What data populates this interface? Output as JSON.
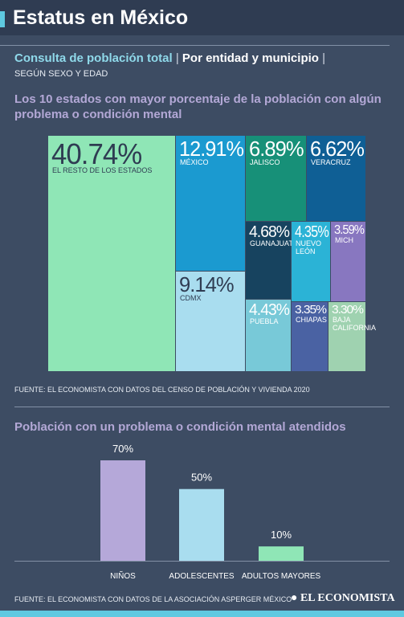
{
  "header": {
    "title": "Estatus en México"
  },
  "subtitle": {
    "part1": "Consulta de población total",
    "separator": "|",
    "part2": "Por entidad y municipio",
    "part3": "SEGÚN SEXO Y EDAD"
  },
  "footer": {
    "brand": "EL ECONOMISTA"
  },
  "colors": {
    "background": "#3d4c63",
    "accent": "#5ec9e0",
    "title_purple": "#b3a8d6"
  },
  "chart_data": [
    {
      "type": "treemap",
      "title": "Los 10 estados con mayor porcentaje de la población con algún problema o condición mental",
      "source": "FUENTE: EL ECONOMISTA CON DATOS DEL CENSO DE POBLACIÓN Y VIVIENDA 2020",
      "unit": "%",
      "items": [
        {
          "label": "EL RESTO DE LOS ESTADOS",
          "value": 40.74,
          "value_label": "40.74%",
          "color": "#8fe6b6",
          "text_color": "#2f3c52"
        },
        {
          "label": "MÉXICO",
          "value": 12.91,
          "value_label": "12.91%",
          "color": "#1b9ad0",
          "text_color": "#ffffff"
        },
        {
          "label": "JALISCO",
          "value": 6.89,
          "value_label": "6.89%",
          "color": "#179078",
          "text_color": "#ffffff"
        },
        {
          "label": "VERACRUZ",
          "value": 6.62,
          "value_label": "6.62%",
          "color": "#0f5f95",
          "text_color": "#ffffff"
        },
        {
          "label": "CDMX",
          "value": 9.14,
          "value_label": "9.14%",
          "color": "#a9ddef",
          "text_color": "#2f3c52"
        },
        {
          "label": "GUANAJUATO",
          "value": 4.68,
          "value_label": "4.68%",
          "color": "#17435f",
          "text_color": "#ffffff"
        },
        {
          "label": "NUEVO LEÓN",
          "value": 4.35,
          "value_label": "4.35%",
          "color": "#2bb3d6",
          "text_color": "#ffffff"
        },
        {
          "label": "MICH",
          "value": 3.59,
          "value_label": "3.59%",
          "color": "#8877c0",
          "text_color": "#ffffff"
        },
        {
          "label": "PUEBLA",
          "value": 4.43,
          "value_label": "4.43%",
          "color": "#78c9d8",
          "text_color": "#ffffff"
        },
        {
          "label": "CHIAPAS",
          "value": 3.35,
          "value_label": "3.35%",
          "color": "#4a62a3",
          "text_color": "#ffffff"
        },
        {
          "label": "BAJA CALIFORNIA",
          "value": 3.3,
          "value_label": "3.30%",
          "color": "#9fd2b0",
          "text_color": "#ffffff"
        }
      ]
    },
    {
      "type": "bar",
      "title": "Población con un problema o condición mental atendidos",
      "source": "FUENTE: EL ECONOMISTA CON DATOS DE LA ASOCIACIÓN ASPERGER MÉXICO",
      "categories": [
        "NIÑOS",
        "ADOLESCENTES",
        "ADULTOS MAYORES"
      ],
      "values": [
        70,
        50,
        10
      ],
      "value_labels": [
        "70%",
        "50%",
        "10%"
      ],
      "colors": [
        "#b5a8d9",
        "#a9ddef",
        "#8fe6b6"
      ],
      "ylim": [
        0,
        70
      ]
    }
  ]
}
